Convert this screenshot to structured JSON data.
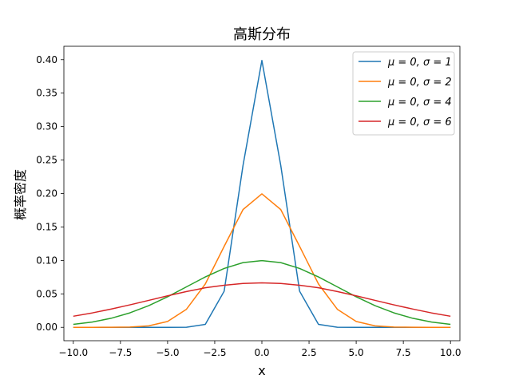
{
  "chart_data": {
    "type": "line",
    "title": "高斯分布",
    "xlabel": "x",
    "ylabel": "概率密度",
    "xlim": [
      -10.5,
      10.5
    ],
    "ylim": [
      -0.02,
      0.42
    ],
    "xticks": [
      -10,
      -7.5,
      -5,
      -2.5,
      0,
      2.5,
      5,
      7.5,
      10
    ],
    "xtick_labels": [
      "−10.0",
      "−7.5",
      "−5.0",
      "−2.5",
      "0.0",
      "2.5",
      "5.0",
      "7.5",
      "10.0"
    ],
    "yticks": [
      0,
      0.05,
      0.1,
      0.15,
      0.2,
      0.25,
      0.3,
      0.35,
      0.4
    ],
    "ytick_labels": [
      "0.00",
      "0.05",
      "0.10",
      "0.15",
      "0.20",
      "0.25",
      "0.30",
      "0.35",
      "0.40"
    ],
    "grid": false,
    "legend_position": "top-right",
    "x": [
      -10,
      -9,
      -8,
      -7,
      -6,
      -5,
      -4,
      -3,
      -2,
      -1,
      0,
      1,
      2,
      3,
      4,
      5,
      6,
      7,
      8,
      9,
      10
    ],
    "series": [
      {
        "name": "μ = 0, σ = 1",
        "color": "#1f77b4",
        "values": [
          0.0,
          0.0,
          0.0,
          0.0,
          0.0,
          0.0,
          0.0001,
          0.0044,
          0.054,
          0.242,
          0.3989,
          0.242,
          0.054,
          0.0044,
          0.0001,
          0.0,
          0.0,
          0.0,
          0.0,
          0.0,
          0.0
        ]
      },
      {
        "name": "μ = 0, σ = 2",
        "color": "#ff7f0e",
        "values": [
          0.0,
          0.0,
          0.0001,
          0.0004,
          0.0022,
          0.0088,
          0.027,
          0.0648,
          0.121,
          0.176,
          0.1995,
          0.176,
          0.121,
          0.0648,
          0.027,
          0.0088,
          0.0022,
          0.0004,
          0.0001,
          0.0,
          0.0
        ]
      },
      {
        "name": "μ = 0, σ = 4",
        "color": "#2ca02c",
        "values": [
          0.0044,
          0.0079,
          0.0135,
          0.0216,
          0.0324,
          0.0457,
          0.0605,
          0.0753,
          0.088,
          0.0967,
          0.0997,
          0.0967,
          0.088,
          0.0753,
          0.0605,
          0.0457,
          0.0324,
          0.0216,
          0.0135,
          0.0079,
          0.0044
        ]
      },
      {
        "name": "μ = 0, σ = 6",
        "color": "#d62728",
        "values": [
          0.0166,
          0.0215,
          0.0273,
          0.0336,
          0.0403,
          0.0471,
          0.0535,
          0.0591,
          0.0629,
          0.0656,
          0.0665,
          0.0656,
          0.0629,
          0.0591,
          0.0535,
          0.0471,
          0.0403,
          0.0336,
          0.0273,
          0.0215,
          0.0166
        ]
      }
    ]
  }
}
